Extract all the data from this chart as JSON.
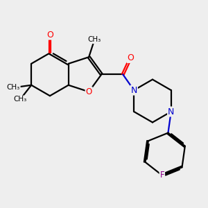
{
  "bg": "#eeeeee",
  "bc": "#000000",
  "oc": "#ff0000",
  "nc": "#0000cd",
  "fc": "#8b008b",
  "lw": 1.6,
  "dbo": 0.055,
  "figsize": [
    3.0,
    3.0
  ],
  "dpi": 100,
  "xlim": [
    0,
    10
  ],
  "ylim": [
    0,
    10
  ]
}
